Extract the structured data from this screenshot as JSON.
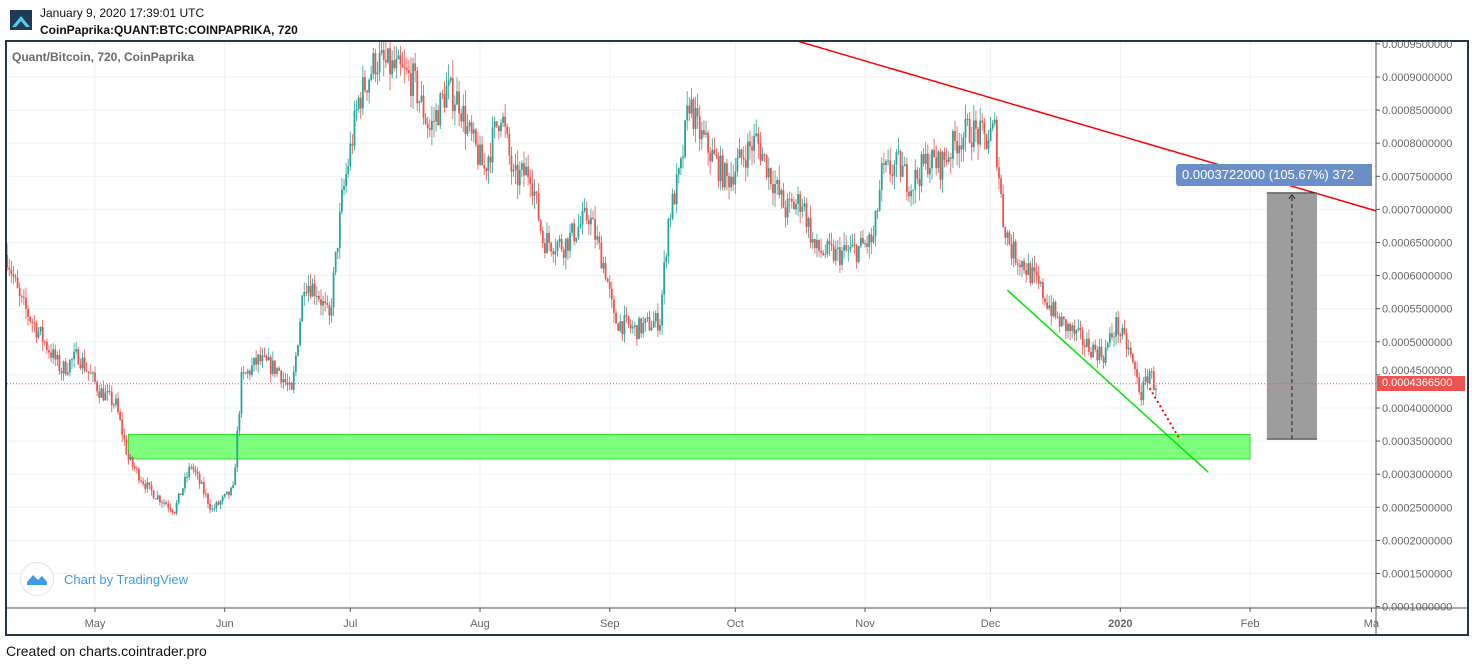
{
  "header": {
    "timestamp": "January 9, 2020 17:39:01 UTC",
    "symbol": "CoinPaprika:QUANT:BTC:COINPAPRIKA, 720",
    "logo": "cointrader-logo-icon"
  },
  "legend": "Quant/Bitcoin, 720, CoinPaprika",
  "watermark": "Chart by TradingView",
  "footer": "Created on charts.cointrader.pro",
  "colors": {
    "up": "#26a69a",
    "down": "#ef5350",
    "trendline_resistance": "#ff0000",
    "trendline_support": "#00e600",
    "support_zone": "#66ff66",
    "measure_box": "#8c8c8c",
    "measure_label": "#6a8fc8",
    "last_price": "#ef5350"
  },
  "chart_data": {
    "type": "candlestick",
    "interval": "720",
    "title": "Quant/Bitcoin, 720, CoinPaprika",
    "ylim": [
      0.0001,
      0.00095
    ],
    "y_ticks": [
      "0.0009500000",
      "0.0009000000",
      "0.0008500000",
      "0.0008000000",
      "0.0007500000",
      "0.0007000000",
      "0.0006500000",
      "0.0006000000",
      "0.0005500000",
      "0.0005000000",
      "0.0004500000",
      "0.0004000000",
      "0.0003500000",
      "0.0003000000",
      "0.0002500000",
      "0.0002000000",
      "0.0001500000",
      "0.0001000000"
    ],
    "x_ticks": [
      {
        "label": "May",
        "date": "2019-05-01"
      },
      {
        "label": "Jun",
        "date": "2019-06-01"
      },
      {
        "label": "Jul",
        "date": "2019-07-01"
      },
      {
        "label": "Aug",
        "date": "2019-08-01"
      },
      {
        "label": "Sep",
        "date": "2019-09-01"
      },
      {
        "label": "Oct",
        "date": "2019-10-01"
      },
      {
        "label": "Nov",
        "date": "2019-11-01"
      },
      {
        "label": "Dec",
        "date": "2019-12-01"
      },
      {
        "label": "2020",
        "date": "2020-01-01"
      },
      {
        "label": "Feb",
        "date": "2020-02-01"
      },
      {
        "label": "Ma",
        "date": "2020-03-01"
      }
    ],
    "grid": true,
    "approx_price_path": [
      [
        "2019-04-10",
        0.000631
      ],
      [
        "2019-04-13",
        0.000563
      ],
      [
        "2019-04-18",
        0.00051
      ],
      [
        "2019-04-23",
        0.000457
      ],
      [
        "2019-04-27",
        0.00048
      ],
      [
        "2019-05-02",
        0.000427
      ],
      [
        "2019-05-06",
        0.000405
      ],
      [
        "2019-05-09",
        0.000322
      ],
      [
        "2019-05-14",
        0.000276
      ],
      [
        "2019-05-20",
        0.000246
      ],
      [
        "2019-05-24",
        0.000314
      ],
      [
        "2019-05-29",
        0.000246
      ],
      [
        "2019-06-03",
        0.000276
      ],
      [
        "2019-06-05",
        0.000442
      ],
      [
        "2019-06-09",
        0.000472
      ],
      [
        "2019-06-14",
        0.000457
      ],
      [
        "2019-06-17",
        0.00042
      ],
      [
        "2019-06-20",
        0.000593
      ],
      [
        "2019-06-23",
        0.000578
      ],
      [
        "2019-06-26",
        0.000533
      ],
      [
        "2019-06-29",
        0.000714
      ],
      [
        "2019-07-03",
        0.000865
      ],
      [
        "2019-07-07",
        0.000925
      ],
      [
        "2019-07-12",
        0.00091
      ],
      [
        "2019-07-16",
        0.000895
      ],
      [
        "2019-07-20",
        0.00082
      ],
      [
        "2019-07-24",
        0.00088
      ],
      [
        "2019-07-27",
        0.000865
      ],
      [
        "2019-07-29",
        0.00082
      ],
      [
        "2019-08-02",
        0.00076
      ],
      [
        "2019-08-06",
        0.00085
      ],
      [
        "2019-08-09",
        0.000744
      ],
      [
        "2019-08-13",
        0.00076
      ],
      [
        "2019-08-16",
        0.000654
      ],
      [
        "2019-08-21",
        0.000646
      ],
      [
        "2019-08-27",
        0.000692
      ],
      [
        "2019-08-31",
        0.000608
      ],
      [
        "2019-09-02",
        0.000533
      ],
      [
        "2019-09-07",
        0.000518
      ],
      [
        "2019-09-13",
        0.000533
      ],
      [
        "2019-09-15",
        0.000684
      ],
      [
        "2019-09-18",
        0.00076
      ],
      [
        "2019-09-20",
        0.000865
      ],
      [
        "2019-09-22",
        0.00082
      ],
      [
        "2019-09-26",
        0.000775
      ],
      [
        "2019-09-29",
        0.000744
      ],
      [
        "2019-10-03",
        0.000782
      ],
      [
        "2019-10-06",
        0.000805
      ],
      [
        "2019-10-10",
        0.000744
      ],
      [
        "2019-10-13",
        0.000699
      ],
      [
        "2019-10-17",
        0.000714
      ],
      [
        "2019-10-20",
        0.000639
      ],
      [
        "2019-10-25",
        0.000631
      ],
      [
        "2019-10-30",
        0.000639
      ],
      [
        "2019-11-03",
        0.000654
      ],
      [
        "2019-11-05",
        0.000752
      ],
      [
        "2019-11-09",
        0.000767
      ],
      [
        "2019-11-12",
        0.000737
      ],
      [
        "2019-11-16",
        0.000775
      ],
      [
        "2019-11-19",
        0.000767
      ],
      [
        "2019-11-23",
        0.000805
      ],
      [
        "2019-11-26",
        0.00082
      ],
      [
        "2019-11-30",
        0.000805
      ],
      [
        "2019-12-02",
        0.00082
      ],
      [
        "2019-12-04",
        0.000684
      ],
      [
        "2019-12-06",
        0.000639
      ],
      [
        "2019-12-10",
        0.000608
      ],
      [
        "2019-12-13",
        0.000578
      ],
      [
        "2019-12-17",
        0.000533
      ],
      [
        "2019-12-20",
        0.000518
      ],
      [
        "2019-12-24",
        0.000495
      ],
      [
        "2019-12-28",
        0.00048
      ],
      [
        "2019-12-31",
        0.000525
      ],
      [
        "2020-01-03",
        0.000488
      ],
      [
        "2020-01-06",
        0.00042
      ],
      [
        "2020-01-08",
        0.000457
      ],
      [
        "2020-01-09",
        0.00043665
      ]
    ],
    "last_price": "0.0004366500",
    "drawings": {
      "resistance_line": {
        "from": [
          "2019-10-16",
          0.000954
        ],
        "to": [
          "2020-03-02",
          0.000698
        ]
      },
      "support_line": {
        "from": [
          "2019-12-05",
          0.000578
        ],
        "to": [
          "2020-01-22",
          0.000303
        ]
      },
      "support_zone": {
        "from": "2019-05-09",
        "to": "2020-02-01",
        "top": 0.00036,
        "bottom": 0.000323
      },
      "projection": {
        "from": [
          "2020-01-08",
          0.00043
        ],
        "to": [
          "2020-01-15",
          0.000355
        ]
      },
      "price_range_measure": {
        "from_date": "2020-02-05",
        "to_date": "2020-02-17",
        "low": 0.000353,
        "high": 0.000725,
        "label": "0.0003722000 (105.67%) 372"
      }
    }
  }
}
